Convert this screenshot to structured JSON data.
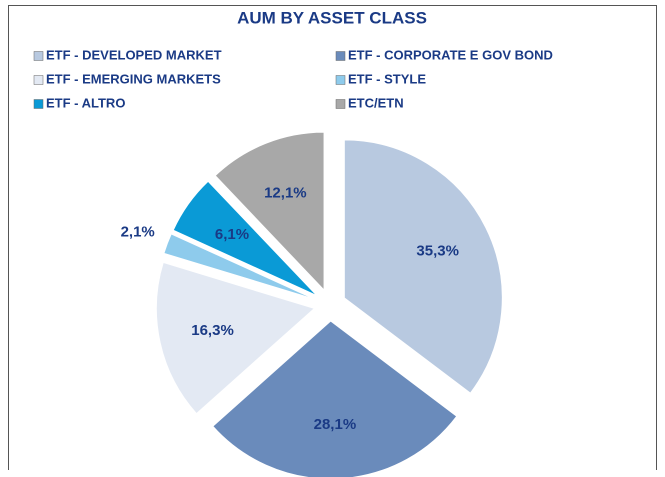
{
  "chart_data": {
    "type": "pie",
    "title": "AUM BY ASSET CLASS",
    "categories": [
      "ETF - DEVELOPED MARKET",
      "ETF - CORPORATE E GOV BOND",
      "ETF - EMERGING MARKETS",
      "ETF - STYLE",
      "ETF - ALTRO",
      "ETC/ETN"
    ],
    "values": [
      35.3,
      28.1,
      16.3,
      2.1,
      6.1,
      12.1
    ],
    "value_labels": [
      "35,3%",
      "28,1%",
      "16,3%",
      "2,1%",
      "6,1%",
      "12,1%"
    ],
    "colors": [
      "#b8c9e0",
      "#6a8bbb",
      "#e3e9f3",
      "#8ecbec",
      "#0a9ad6",
      "#a8a8a8"
    ]
  }
}
